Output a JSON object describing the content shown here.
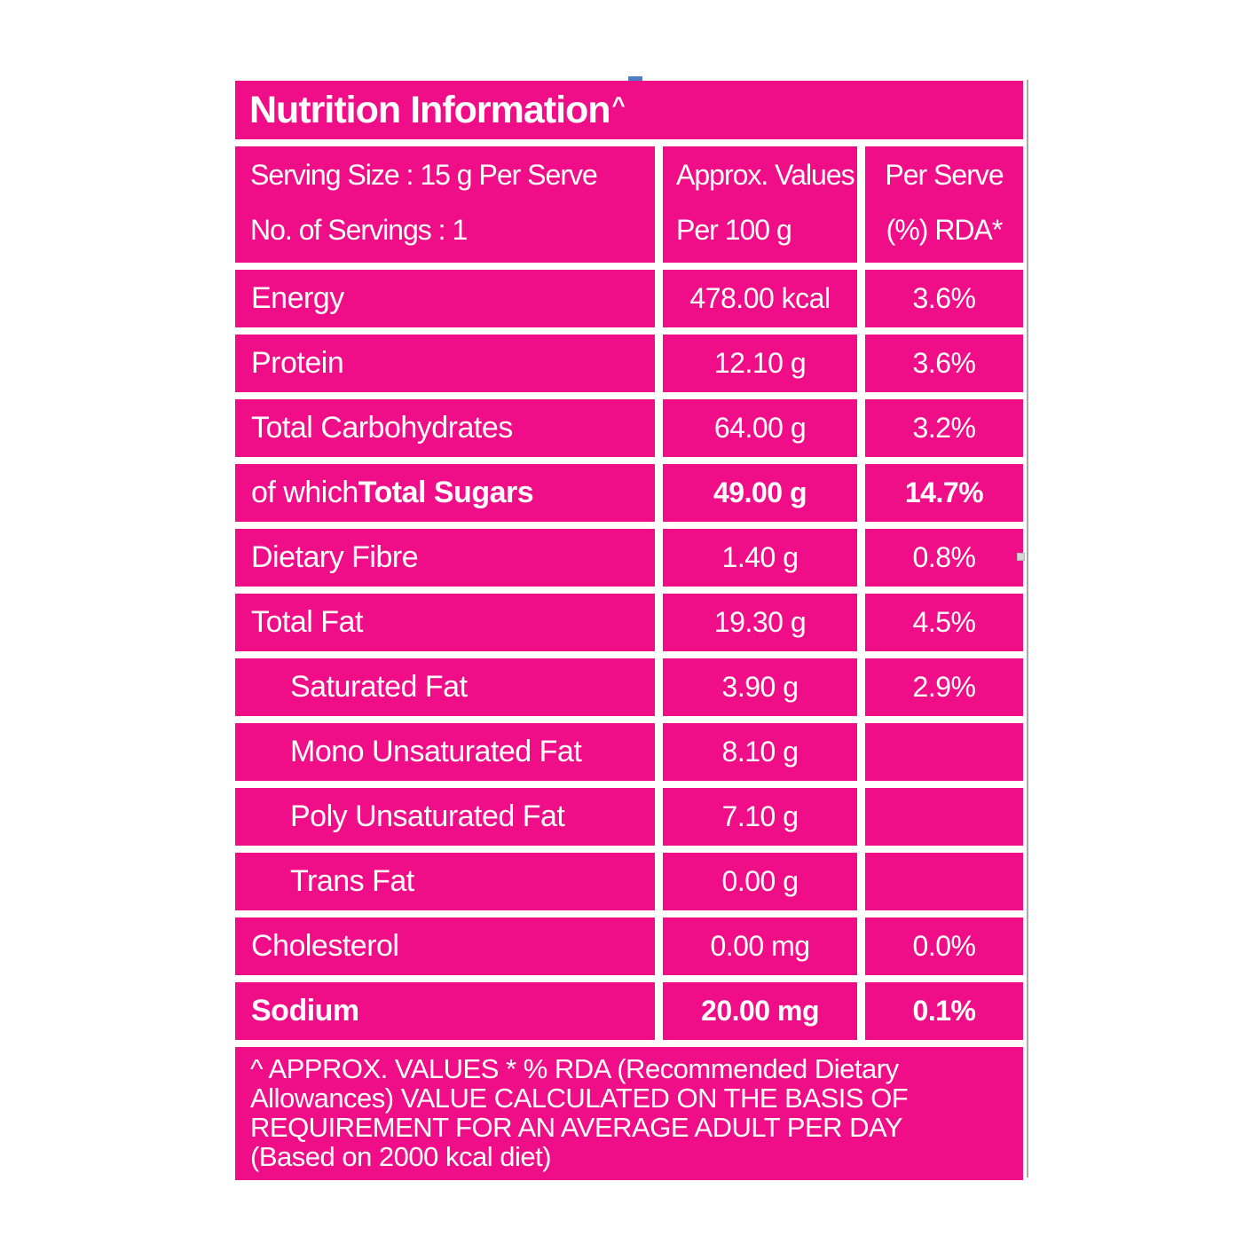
{
  "colors": {
    "pink": "#EF0E88",
    "text": "#FFFFFF",
    "border_line": "#ABABAB",
    "artifact_blue": "#4A7FC1"
  },
  "title": {
    "text": "Nutrition Information",
    "sup": "^"
  },
  "header": {
    "serving_line1": "Serving Size : 15 g Per Serve",
    "serving_line2": "No. of Servings : 1",
    "values_line1": "Approx. Values",
    "values_line2": "Per 100 g",
    "rda_line1": "Per Serve",
    "rda_line2": "(%) RDA*"
  },
  "rows": [
    {
      "label": "Energy",
      "label_bold": "",
      "value": "478.00 kcal",
      "rda": "3.6%"
    },
    {
      "label": "Protein",
      "label_bold": "",
      "value": "12.10 g",
      "rda": "3.6%"
    },
    {
      "label": "Total Carbohydrates",
      "label_bold": "",
      "value": "64.00 g",
      "rda": "3.2%"
    },
    {
      "label": "of which ",
      "label_bold": "Total Sugars",
      "value": "49.00 g",
      "rda": "14.7%"
    },
    {
      "label": "Dietary Fibre",
      "label_bold": "",
      "value": "1.40 g",
      "rda": "0.8%"
    },
    {
      "label": "Total Fat",
      "label_bold": "",
      "value": "19.30 g",
      "rda": "4.5%"
    },
    {
      "label": "Saturated Fat",
      "label_bold": "",
      "value": "3.90 g",
      "rda": "2.9%"
    },
    {
      "label": "Mono Unsaturated Fat",
      "label_bold": "",
      "value": "8.10 g",
      "rda": ""
    },
    {
      "label": "Poly Unsaturated Fat",
      "label_bold": "",
      "value": "7.10 g",
      "rda": ""
    },
    {
      "label": "Trans Fat",
      "label_bold": "",
      "value": "0.00 g",
      "rda": ""
    },
    {
      "label": "Cholesterol",
      "label_bold": "",
      "value": "0.00 mg",
      "rda": "0.0%"
    },
    {
      "label": "",
      "label_bold": "Sodium",
      "value": "20.00 mg",
      "rda": "0.1%"
    }
  ],
  "footer": {
    "line1": "^ APPROX. VALUES * % RDA (Recommended Dietary",
    "line2": "Allowances) VALUE CALCULATED ON THE BASIS OF",
    "line3": "REQUIREMENT FOR AN AVERAGE ADULT PER DAY",
    "line4": "(Based on 2000 kcal diet)"
  }
}
